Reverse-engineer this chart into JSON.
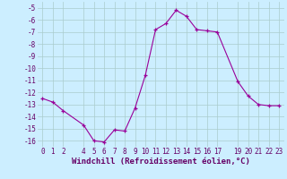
{
  "x": [
    0,
    1,
    2,
    4,
    5,
    6,
    7,
    8,
    9,
    10,
    11,
    12,
    13,
    14,
    15,
    16,
    17,
    19,
    20,
    21,
    22,
    23
  ],
  "y": [
    -12.5,
    -12.8,
    -13.5,
    -14.7,
    -16.0,
    -16.1,
    -15.1,
    -15.2,
    -13.3,
    -10.6,
    -6.8,
    -6.3,
    -5.2,
    -5.7,
    -6.8,
    -6.9,
    -7.0,
    -11.1,
    -12.3,
    -13.0,
    -13.1,
    -13.1
  ],
  "xlim": [
    -0.5,
    23.5
  ],
  "ylim": [
    -16.5,
    -4.5
  ],
  "xticks": [
    0,
    1,
    2,
    4,
    5,
    6,
    7,
    8,
    9,
    10,
    11,
    12,
    13,
    14,
    15,
    16,
    17,
    19,
    20,
    21,
    22,
    23
  ],
  "yticks": [
    -16,
    -15,
    -14,
    -13,
    -12,
    -11,
    -10,
    -9,
    -8,
    -7,
    -6,
    -5
  ],
  "xlabel": "Windchill (Refroidissement éolien,°C)",
  "line_color": "#990099",
  "marker_color": "#990099",
  "bg_color": "#cceeff",
  "grid_color": "#aacccc",
  "tick_color": "#660066",
  "xlabel_fontsize": 6.5,
  "tick_fontsize": 5.5
}
